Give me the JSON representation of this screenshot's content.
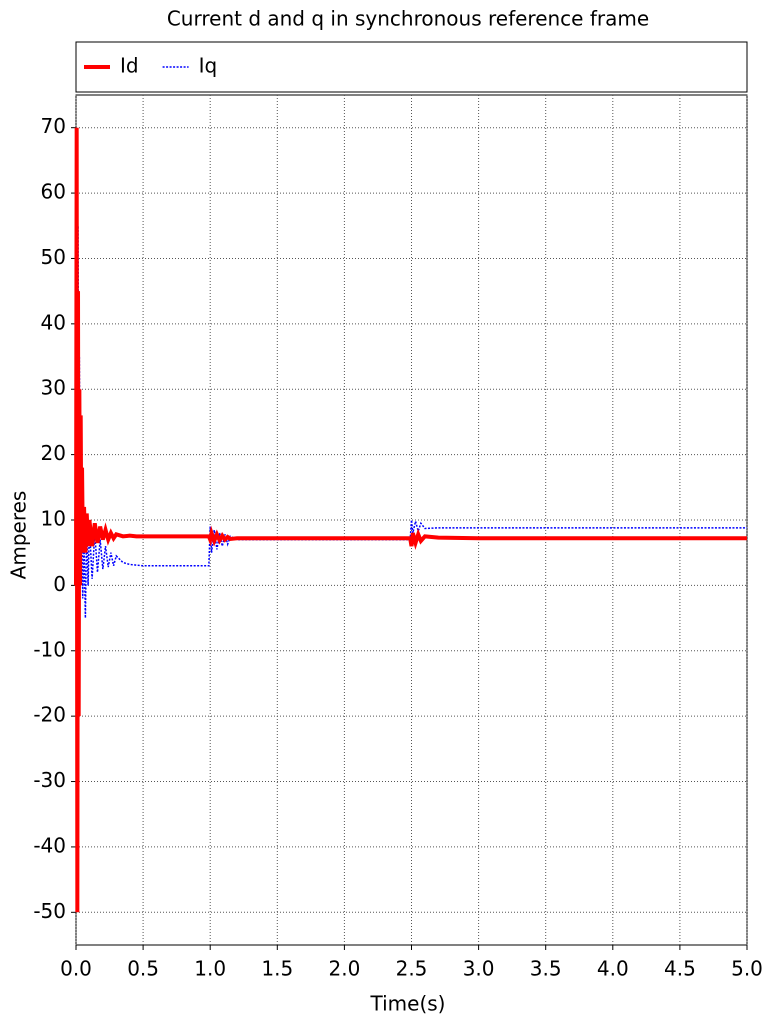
{
  "chart_data": {
    "type": "line",
    "title": "Current d and q in synchronous reference frame",
    "x_label": "Time(s)",
    "y_label": "Amperes",
    "x": [
      0,
      0.005,
      0.01,
      0.015,
      0.02,
      0.025,
      0.03,
      0.035,
      0.04,
      0.045,
      0.05,
      0.06,
      0.07,
      0.08,
      0.09,
      0.1,
      0.12,
      0.14,
      0.16,
      0.18,
      0.2,
      0.22,
      0.24,
      0.26,
      0.28,
      0.3,
      0.35,
      0.4,
      0.45,
      0.5,
      0.6,
      0.8,
      0.99,
      1.0,
      1.01,
      1.03,
      1.05,
      1.07,
      1.09,
      1.11,
      1.13,
      1.15,
      1.2,
      1.25,
      1.3,
      1.4,
      1.5,
      2.0,
      2.49,
      2.5,
      2.51,
      2.53,
      2.55,
      2.57,
      2.6,
      2.7,
      3.0,
      4.0,
      5.0
    ],
    "series": [
      {
        "name": "Id",
        "color": "#ff0000",
        "style": "solid",
        "values": [
          0,
          70,
          -50,
          45,
          -20,
          30,
          0,
          26,
          5,
          18,
          8,
          12,
          5,
          11,
          6,
          10,
          6,
          9.5,
          6.5,
          9,
          7,
          8.5,
          7,
          8,
          7.2,
          7.8,
          7.5,
          7.6,
          7.5,
          7.5,
          7.5,
          7.5,
          7.5,
          7,
          8,
          6.8,
          7.8,
          6.9,
          7.6,
          7,
          7.4,
          7.1,
          7.2,
          7.2,
          7.2,
          7.2,
          7.2,
          7.2,
          7.2,
          6,
          8,
          6.5,
          7.8,
          6.8,
          7.5,
          7.3,
          7.2,
          7.2,
          7.2
        ]
      },
      {
        "name": "Iq",
        "color": "#0000ff",
        "style": "dotted",
        "values": [
          0,
          70,
          40,
          55,
          30,
          35,
          15,
          20,
          5,
          10,
          -2,
          6,
          -5,
          10,
          0,
          9,
          1,
          8,
          2,
          7,
          2.5,
          6,
          2.8,
          5,
          3,
          4.5,
          3.5,
          3.2,
          3.1,
          3,
          3,
          3,
          3,
          9,
          5,
          8.5,
          5.5,
          8,
          6,
          7.8,
          6.3,
          7.5,
          7,
          7,
          7,
          7,
          7,
          7,
          7,
          10,
          8,
          9.8,
          8.3,
          9.5,
          8.7,
          8.8,
          8.8,
          8.8,
          8.8
        ]
      }
    ],
    "xlim": [
      0,
      5
    ],
    "ylim": [
      -55,
      75
    ],
    "xticks": [
      {
        "value": 0,
        "label": "0.0"
      },
      0.5,
      {
        "value": 1,
        "label": "1.0"
      },
      1.5,
      {
        "value": 2,
        "label": "2.0"
      },
      2.5,
      {
        "value": 3,
        "label": "3.0"
      },
      3.5,
      {
        "value": 4,
        "label": "4.0"
      },
      4.5,
      {
        "value": 5,
        "label": "5.0"
      }
    ],
    "yticks": [
      -50,
      -40,
      -30,
      -20,
      -10,
      0,
      10,
      20,
      30,
      40,
      50,
      60,
      70
    ],
    "grid": true,
    "legend": "top"
  }
}
